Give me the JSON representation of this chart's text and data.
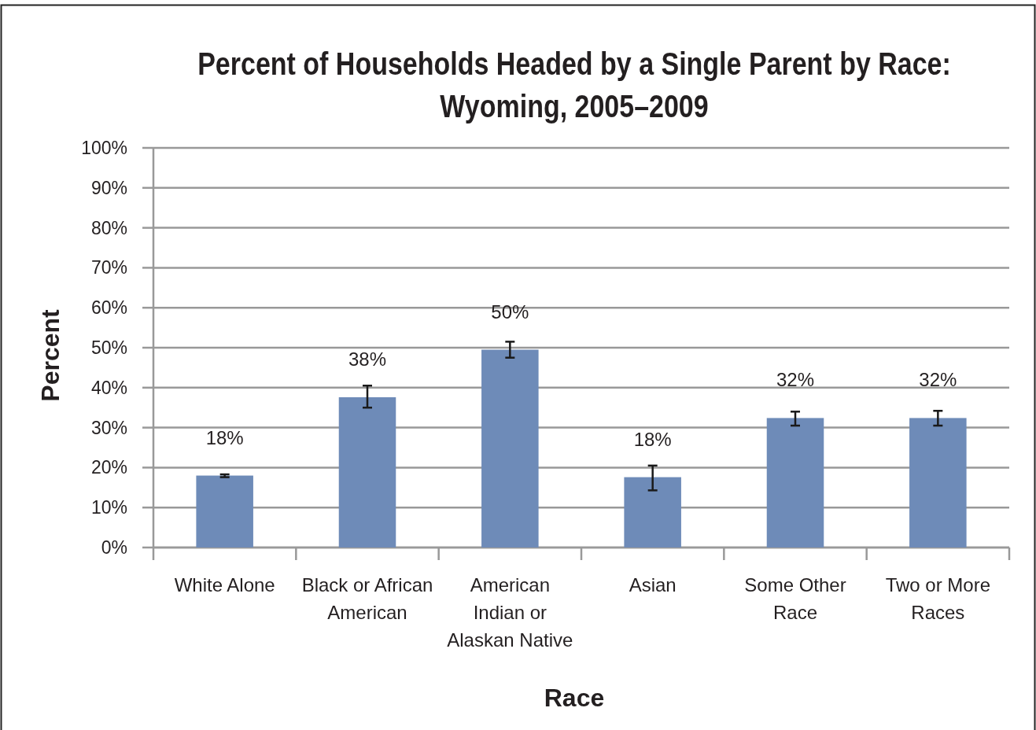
{
  "chart_data": {
    "type": "bar",
    "title": "Percent of Households Headed by a Single Parent by Race: Wyoming, 2005–2009",
    "xlabel": "Race",
    "ylabel": "Percent",
    "categories": [
      "White Alone",
      "Black or African American",
      "American Indian or Alaskan Native",
      "Asian",
      "Some Other Race",
      "Two or More Races"
    ],
    "values": [
      18.0,
      37.6,
      49.5,
      17.6,
      32.4,
      32.4
    ],
    "value_labels": [
      "18%",
      "38%",
      "50%",
      "18%",
      "32%",
      "32%"
    ],
    "errors": [
      [
        17.6,
        18.3
      ],
      [
        35.0,
        40.5
      ],
      [
        47.5,
        51.5
      ],
      [
        14.3,
        20.5
      ],
      [
        30.5,
        34.0
      ],
      [
        30.5,
        34.2
      ]
    ],
    "color": "#6e8bb8",
    "ylim": [
      0,
      100
    ],
    "yticks": [
      {
        "value": 0,
        "label": "0%"
      },
      {
        "value": 10,
        "label": "10%"
      },
      {
        "value": 20,
        "label": "20%"
      },
      {
        "value": 30,
        "label": "30%"
      },
      {
        "value": 40,
        "label": "40%"
      },
      {
        "value": 50,
        "label": "50%"
      },
      {
        "value": 60,
        "label": "60%"
      },
      {
        "value": 70,
        "label": "70%"
      },
      {
        "value": 80,
        "label": "80%"
      },
      {
        "value": 90,
        "label": "90%"
      },
      {
        "value": 100,
        "label": "100%"
      }
    ],
    "grid": "y"
  }
}
